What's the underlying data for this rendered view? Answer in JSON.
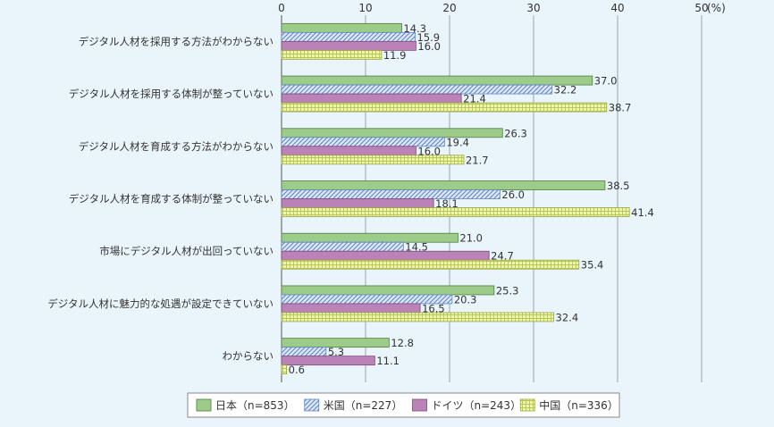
{
  "chart_data": {
    "type": "bar",
    "orientation": "horizontal",
    "unit_label": "(%)",
    "xlim": [
      0,
      50
    ],
    "xticks": [
      0,
      10,
      20,
      30,
      40,
      50
    ],
    "grid": true,
    "legend_position": "bottom-center",
    "categories": [
      "デジタル人材を採用する方法がわからない",
      "デジタル人材を採用する体制が整っていない",
      "デジタル人材を育成する方法がわからない",
      "デジタル人材を育成する体制が整っていない",
      "市場にデジタル人材が出回っていない",
      "デジタル人材に魅力的な処遇が設定できていない",
      "わからない"
    ],
    "series": [
      {
        "name": "日本（n=853）",
        "values": [
          14.3,
          37.0,
          26.3,
          38.5,
          21.0,
          25.3,
          12.8
        ],
        "color": "#9ccb8a",
        "pattern": "solid"
      },
      {
        "name": "米国（n=227）",
        "values": [
          15.9,
          32.2,
          19.4,
          26.0,
          14.5,
          20.3,
          5.3
        ],
        "color": "#b9cdea",
        "pattern": "diagonal"
      },
      {
        "name": "ドイツ（n=243）",
        "values": [
          16.0,
          21.4,
          16.0,
          18.1,
          24.7,
          16.5,
          11.1
        ],
        "color": "#bb82b8",
        "pattern": "solid"
      },
      {
        "name": "中国（n=336）",
        "values": [
          11.9,
          38.7,
          21.7,
          41.4,
          35.4,
          32.4,
          0.6
        ],
        "color": "#e6ef9c",
        "pattern": "grid"
      }
    ],
    "value_labels": [
      [
        "14.3",
        "37.0",
        "26.3",
        "38.5",
        "21.0",
        "25.3",
        "12.8"
      ],
      [
        "15.9",
        "32.2",
        "19.4",
        "26.0",
        "14.5",
        "20.3",
        "5.3"
      ],
      [
        "16.0",
        "21.4",
        "16.0",
        "18.1",
        "24.7",
        "16.5",
        "11.1"
      ],
      [
        "11.9",
        "38.7",
        "21.7",
        "41.4",
        "35.4",
        "32.4",
        "0.6"
      ]
    ]
  }
}
